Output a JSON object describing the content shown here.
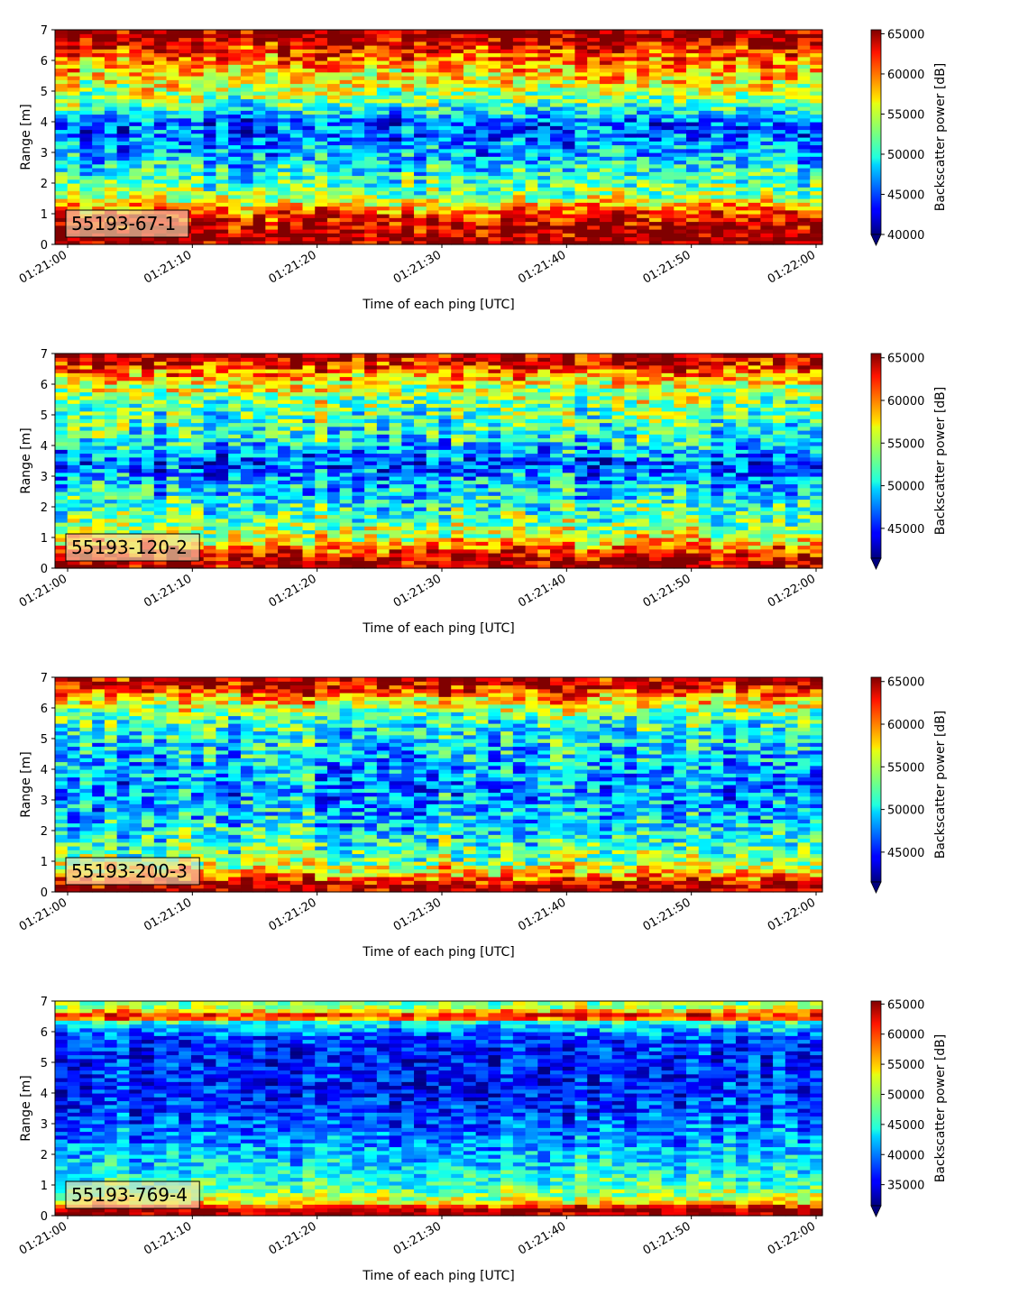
{
  "chart_data": [
    {
      "type": "heatmap",
      "label": "55193-67-1",
      "xlabel": "Time of each ping [UTC]",
      "ylabel": "Range [m]",
      "x_ticks": [
        "01:21:00",
        "01:21:10",
        "01:21:20",
        "01:21:30",
        "01:21:40",
        "01:21:50",
        "01:22:00"
      ],
      "x_range": [
        "01:21:00",
        "01:22:00"
      ],
      "y_ticks": [
        0,
        1,
        2,
        3,
        4,
        5,
        6,
        7
      ],
      "ylim": [
        0,
        7
      ],
      "colorbar": {
        "label": "Backscatter power [dB]",
        "ticks": [
          40000,
          45000,
          50000,
          55000,
          60000,
          65000
        ],
        "range": [
          40000,
          65500
        ],
        "colormap": "jet",
        "extend": "min"
      },
      "profile": [
        {
          "range": 0.2,
          "value": 65000
        },
        {
          "range": 0.6,
          "value": 64000
        },
        {
          "range": 1.1,
          "value": 60000
        },
        {
          "range": 1.6,
          "value": 53000
        },
        {
          "range": 2.2,
          "value": 51000
        },
        {
          "range": 2.8,
          "value": 48000
        },
        {
          "range": 3.4,
          "value": 46000
        },
        {
          "range": 4.0,
          "value": 45000
        },
        {
          "range": 4.6,
          "value": 52000
        },
        {
          "range": 5.2,
          "value": 55000
        },
        {
          "range": 5.8,
          "value": 58000
        },
        {
          "range": 6.3,
          "value": 61000
        },
        {
          "range": 6.8,
          "value": 65000
        }
      ]
    },
    {
      "type": "heatmap",
      "label": "55193-120-2",
      "xlabel": "Time of each ping [UTC]",
      "ylabel": "Range [m]",
      "x_ticks": [
        "01:21:00",
        "01:21:10",
        "01:21:20",
        "01:21:30",
        "01:21:40",
        "01:21:50",
        "01:22:00"
      ],
      "x_range": [
        "01:21:00",
        "01:22:00"
      ],
      "y_ticks": [
        0,
        1,
        2,
        3,
        4,
        5,
        6,
        7
      ],
      "ylim": [
        0,
        7
      ],
      "colorbar": {
        "label": "Backscatter power [dB]",
        "ticks": [
          45000,
          50000,
          55000,
          60000,
          65000
        ],
        "range": [
          41500,
          65500
        ],
        "colormap": "jet",
        "extend": "min"
      },
      "profile": [
        {
          "range": 0.2,
          "value": 65000
        },
        {
          "range": 0.5,
          "value": 62000
        },
        {
          "range": 1.0,
          "value": 56000
        },
        {
          "range": 1.6,
          "value": 53000
        },
        {
          "range": 2.2,
          "value": 51000
        },
        {
          "range": 2.8,
          "value": 49000
        },
        {
          "range": 3.4,
          "value": 46000
        },
        {
          "range": 4.0,
          "value": 50000
        },
        {
          "range": 4.6,
          "value": 52000
        },
        {
          "range": 5.2,
          "value": 53000
        },
        {
          "range": 5.8,
          "value": 55000
        },
        {
          "range": 6.3,
          "value": 59000
        },
        {
          "range": 6.8,
          "value": 64000
        }
      ]
    },
    {
      "type": "heatmap",
      "label": "55193-200-3",
      "xlabel": "Time of each ping [UTC]",
      "ylabel": "Range [m]",
      "x_ticks": [
        "01:21:00",
        "01:21:10",
        "01:21:20",
        "01:21:30",
        "01:21:40",
        "01:21:50",
        "01:22:00"
      ],
      "x_range": [
        "01:21:00",
        "01:22:00"
      ],
      "y_ticks": [
        0,
        1,
        2,
        3,
        4,
        5,
        6,
        7
      ],
      "ylim": [
        0,
        7
      ],
      "colorbar": {
        "label": "Backscatter power [dB]",
        "ticks": [
          45000,
          50000,
          55000,
          60000,
          65000
        ],
        "range": [
          41500,
          65500
        ],
        "colormap": "jet",
        "extend": "min"
      },
      "profile": [
        {
          "range": 0.2,
          "value": 65000
        },
        {
          "range": 0.5,
          "value": 60000
        },
        {
          "range": 1.0,
          "value": 54000
        },
        {
          "range": 1.6,
          "value": 52000
        },
        {
          "range": 2.2,
          "value": 50000
        },
        {
          "range": 2.8,
          "value": 49000
        },
        {
          "range": 3.4,
          "value": 48000
        },
        {
          "range": 4.0,
          "value": 49000
        },
        {
          "range": 4.6,
          "value": 50000
        },
        {
          "range": 5.2,
          "value": 51000
        },
        {
          "range": 5.8,
          "value": 53000
        },
        {
          "range": 6.3,
          "value": 58000
        },
        {
          "range": 6.8,
          "value": 64000
        }
      ]
    },
    {
      "type": "heatmap",
      "label": "55193-769-4",
      "xlabel": "Time of each ping [UTC]",
      "ylabel": "Range [m]",
      "x_ticks": [
        "01:21:00",
        "01:21:10",
        "01:21:20",
        "01:21:30",
        "01:21:40",
        "01:21:50",
        "01:22:00"
      ],
      "x_range": [
        "01:21:00",
        "01:22:00"
      ],
      "y_ticks": [
        0,
        1,
        2,
        3,
        4,
        5,
        6,
        7
      ],
      "ylim": [
        0,
        7
      ],
      "colorbar": {
        "label": "Backscatter power [dB]",
        "ticks": [
          35000,
          40000,
          45000,
          50000,
          55000,
          60000,
          65000
        ],
        "range": [
          31500,
          65500
        ],
        "colormap": "jet",
        "extend": "min"
      },
      "profile": [
        {
          "range": 0.2,
          "value": 65000
        },
        {
          "range": 0.5,
          "value": 52000
        },
        {
          "range": 1.0,
          "value": 47000
        },
        {
          "range": 1.6,
          "value": 44000
        },
        {
          "range": 2.2,
          "value": 42000
        },
        {
          "range": 2.8,
          "value": 40000
        },
        {
          "range": 3.4,
          "value": 38000
        },
        {
          "range": 4.0,
          "value": 37000
        },
        {
          "range": 4.6,
          "value": 37000
        },
        {
          "range": 5.2,
          "value": 37000
        },
        {
          "range": 5.8,
          "value": 38000
        },
        {
          "range": 6.3,
          "value": 45000
        },
        {
          "range": 6.5,
          "value": 63000
        },
        {
          "range": 6.8,
          "value": 50000
        }
      ]
    }
  ]
}
